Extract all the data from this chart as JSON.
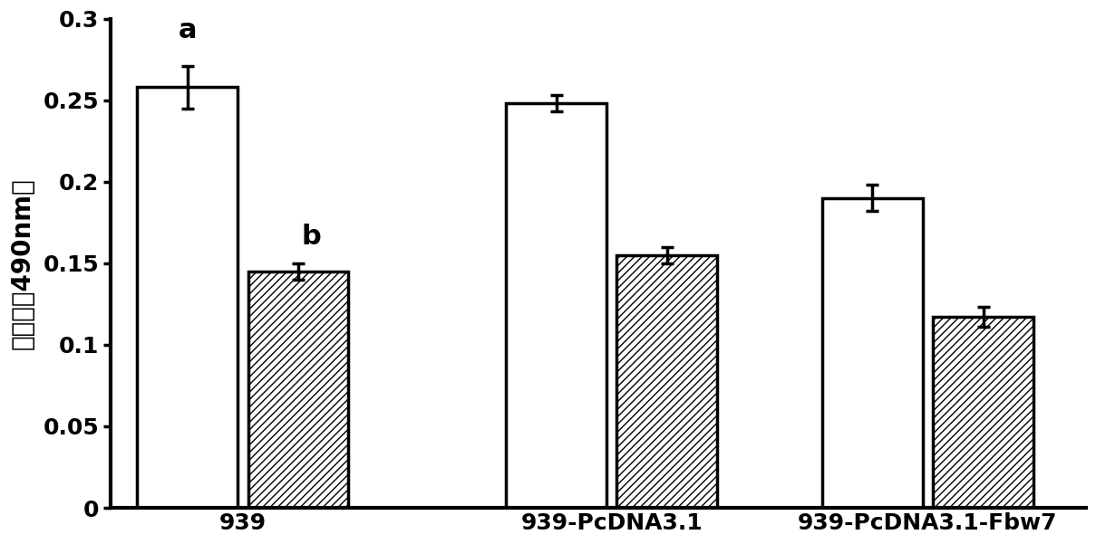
{
  "groups": [
    "939",
    "939-PcDNA3.1",
    "939-PcDNA3.1-Fbw7"
  ],
  "white_values": [
    0.258,
    0.248,
    0.19
  ],
  "hatch_values": [
    0.145,
    0.155,
    0.117
  ],
  "white_errors": [
    0.013,
    0.005,
    0.008
  ],
  "hatch_errors": [
    0.005,
    0.005,
    0.006
  ],
  "bar_width": 0.38,
  "ylim": [
    0,
    0.3
  ],
  "yticks": [
    0,
    0.05,
    0.1,
    0.15,
    0.2,
    0.25,
    0.3
  ],
  "ytick_labels": [
    "0",
    "0.05",
    "0.1",
    "0.15",
    "0.2",
    "0.25",
    "0.3"
  ],
  "ylabel": "吸光値（490nm）",
  "white_color": "#ffffff",
  "hatch_color": "#ffffff",
  "hatch_pattern": "////",
  "edge_color": "#000000",
  "annotation_a": "a",
  "annotation_b": "b",
  "annotation_fontsize": 22,
  "label_fontsize": 18,
  "tick_fontsize": 18,
  "ylabel_fontsize": 20,
  "background_color": "#ffffff",
  "figsize": [
    12.09,
    6.01
  ],
  "dpi": 100,
  "group_centers": [
    0.5,
    1.9,
    3.1
  ],
  "bar_gap": 0.04,
  "xlim_left": 0.0,
  "xlim_right": 3.7
}
